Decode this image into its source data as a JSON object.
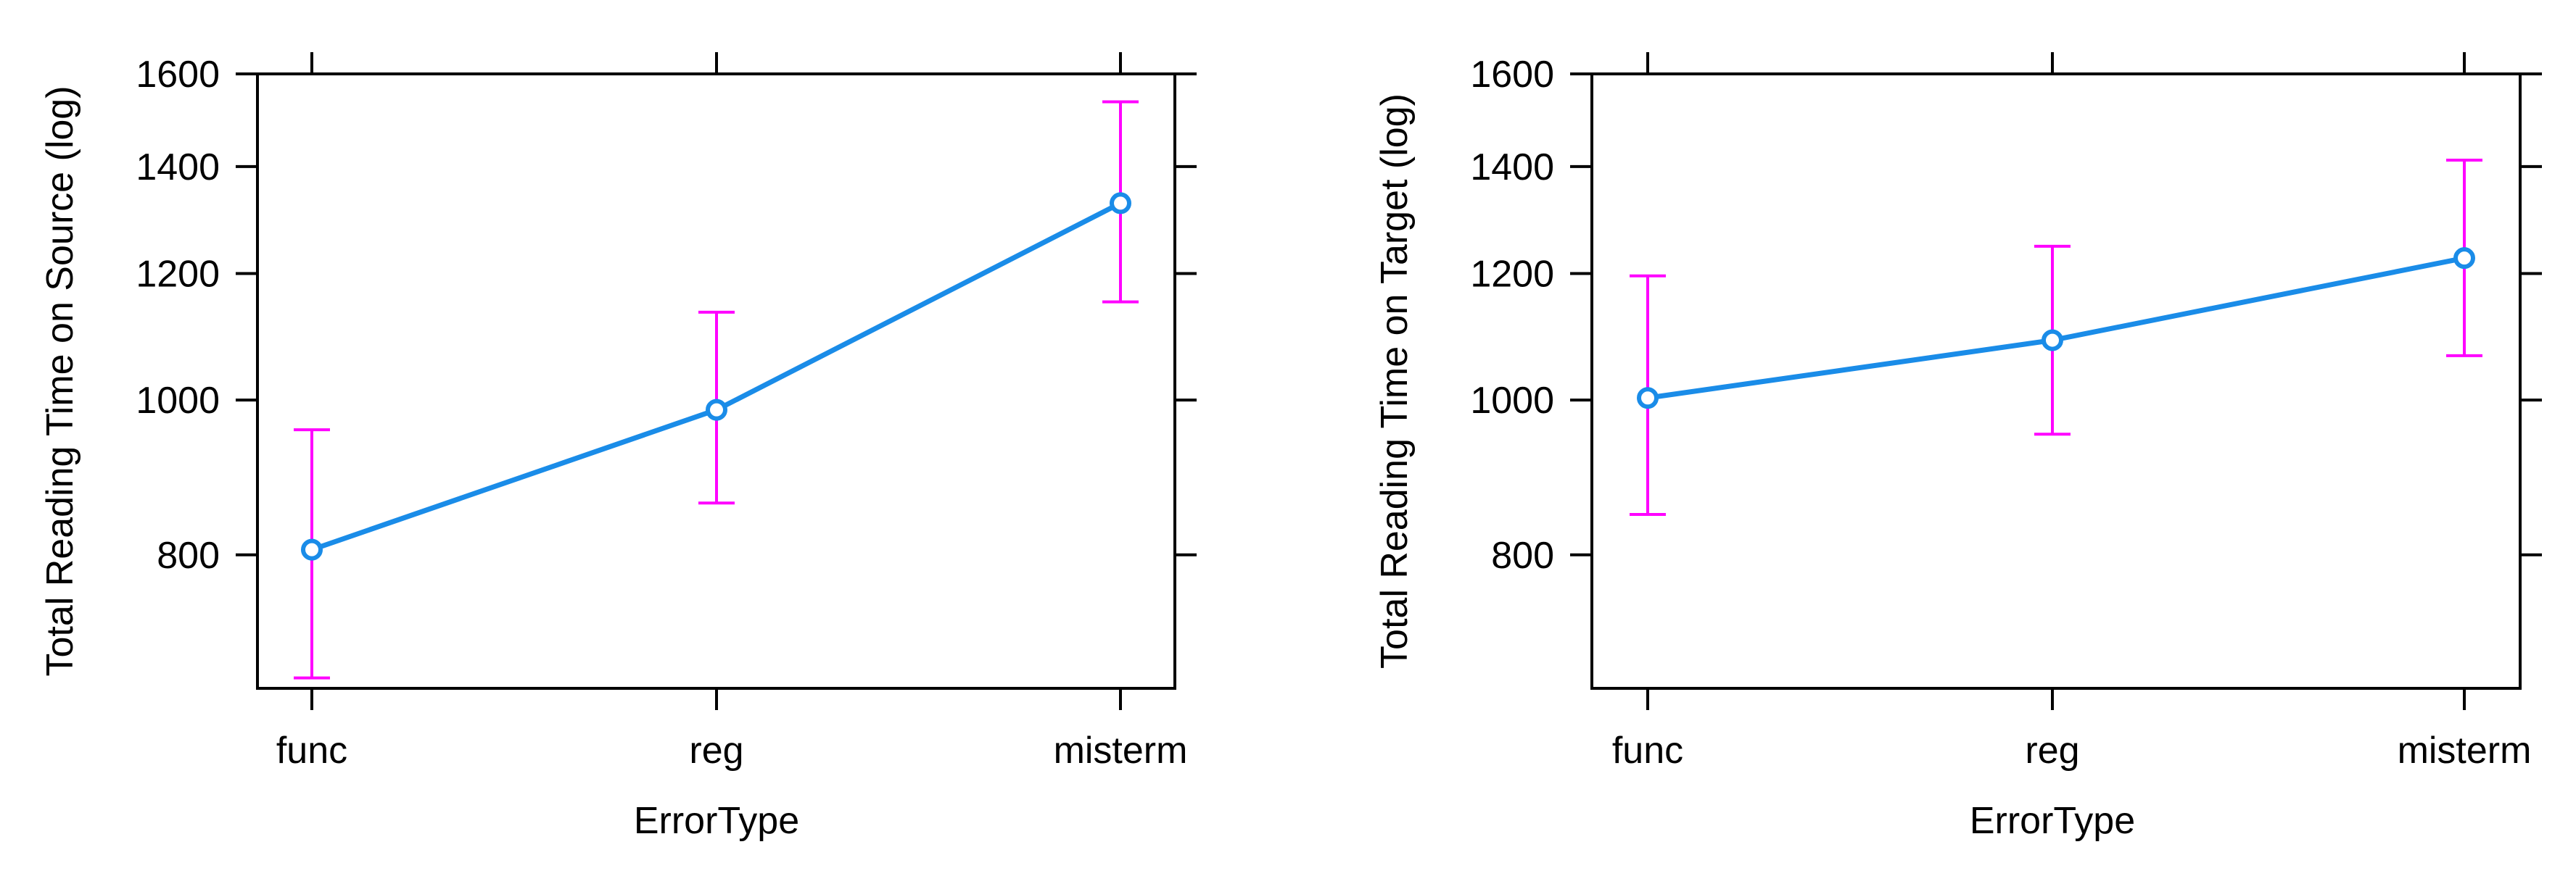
{
  "colors": {
    "line": "#1a8ce8",
    "error_bar": "#ff00ff",
    "axis": "#000000"
  },
  "chart_data": [
    {
      "type": "line",
      "scale": "log",
      "grid": false,
      "xlabel": "ErrorType",
      "ylabel": "Total Reading Time on Source (log)",
      "categories": [
        "func",
        "reg",
        "misterm"
      ],
      "yticks": [
        800,
        1000,
        1200,
        1400,
        1600
      ],
      "ylim": [
        660,
        1600
      ],
      "series": [
        {
          "values": [
            806,
            986,
            1328
          ],
          "lower": [
            670,
            862,
            1152
          ],
          "upper": [
            958,
            1135,
            1537
          ]
        }
      ]
    },
    {
      "type": "line",
      "scale": "log",
      "grid": false,
      "xlabel": "ErrorType",
      "ylabel": "Total Reading Time on Target (log)",
      "categories": [
        "func",
        "reg",
        "misterm"
      ],
      "yticks": [
        800,
        1000,
        1200,
        1400,
        1600
      ],
      "ylim": [
        660,
        1600
      ],
      "series": [
        {
          "values": [
            1003,
            1090,
            1227
          ],
          "lower": [
            848,
            952,
            1066
          ],
          "upper": [
            1196,
            1248,
            1413
          ]
        }
      ]
    }
  ]
}
